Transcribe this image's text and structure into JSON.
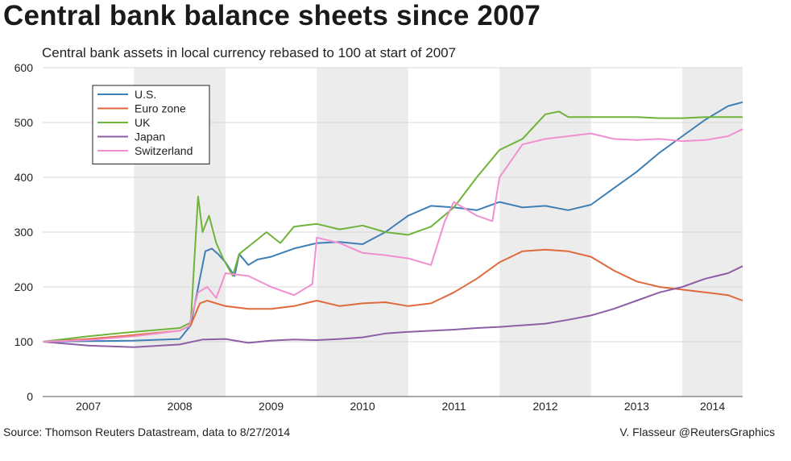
{
  "title": "Central bank balance sheets since 2007",
  "subtitle": "Central bank assets in local currency rebased to 100 at start of 2007",
  "source": "Source: Thomson Reuters Datastream, data to 8/27/2014",
  "credit": "V. Flasseur @ReutersGraphics",
  "chart_data": {
    "type": "line",
    "ylim": [
      0,
      600
    ],
    "xlim": [
      2007.0,
      2014.66
    ],
    "yticks": [
      "0",
      "100",
      "200",
      "300",
      "400",
      "500",
      "600"
    ],
    "xticks": [
      "2007",
      "2008",
      "2009",
      "2010",
      "2011",
      "2012",
      "2013",
      "2014"
    ],
    "shaded_years": [
      2008,
      2010,
      2012,
      2014
    ],
    "grid": true,
    "legend_position": "top-left",
    "series": [
      {
        "name": "U.S.",
        "color": "#3e7fb5",
        "x": [
          2007.0,
          2007.5,
          2008.0,
          2008.5,
          2008.62,
          2008.72,
          2008.78,
          2008.85,
          2008.92,
          2009.0,
          2009.1,
          2009.15,
          2009.25,
          2009.35,
          2009.5,
          2009.75,
          2010.0,
          2010.25,
          2010.5,
          2010.75,
          2011.0,
          2011.25,
          2011.5,
          2011.75,
          2012.0,
          2012.25,
          2012.5,
          2012.75,
          2013.0,
          2013.25,
          2013.5,
          2013.75,
          2014.0,
          2014.25,
          2014.5,
          2014.66
        ],
        "y": [
          100,
          101,
          102,
          105,
          130,
          215,
          265,
          270,
          260,
          245,
          220,
          260,
          240,
          250,
          255,
          270,
          280,
          282,
          278,
          300,
          330,
          348,
          345,
          340,
          355,
          345,
          348,
          340,
          350,
          380,
          410,
          445,
          475,
          505,
          530,
          537
        ]
      },
      {
        "name": "Euro zone",
        "color": "#e06a3c",
        "x": [
          2007.0,
          2007.5,
          2008.0,
          2008.5,
          2008.62,
          2008.72,
          2008.8,
          2009.0,
          2009.25,
          2009.5,
          2009.75,
          2010.0,
          2010.25,
          2010.5,
          2010.75,
          2011.0,
          2011.25,
          2011.5,
          2011.75,
          2012.0,
          2012.25,
          2012.5,
          2012.75,
          2013.0,
          2013.25,
          2013.5,
          2013.75,
          2014.0,
          2014.25,
          2014.5,
          2014.66
        ],
        "y": [
          100,
          105,
          112,
          120,
          130,
          170,
          175,
          165,
          160,
          160,
          165,
          175,
          165,
          170,
          172,
          165,
          170,
          190,
          215,
          245,
          265,
          268,
          265,
          255,
          230,
          210,
          200,
          195,
          190,
          185,
          175
        ]
      },
      {
        "name": "UK",
        "color": "#6fb33a",
        "x": [
          2007.0,
          2007.5,
          2008.0,
          2008.5,
          2008.62,
          2008.7,
          2008.75,
          2008.82,
          2008.9,
          2008.98,
          2009.08,
          2009.15,
          2009.3,
          2009.45,
          2009.6,
          2009.75,
          2010.0,
          2010.25,
          2010.5,
          2010.75,
          2011.0,
          2011.25,
          2011.5,
          2011.75,
          2012.0,
          2012.25,
          2012.5,
          2012.65,
          2012.75,
          2013.0,
          2013.25,
          2013.5,
          2013.75,
          2014.0,
          2014.25,
          2014.5,
          2014.66
        ],
        "y": [
          100,
          110,
          118,
          125,
          135,
          365,
          300,
          330,
          280,
          250,
          220,
          260,
          280,
          300,
          280,
          310,
          315,
          305,
          312,
          300,
          295,
          310,
          345,
          400,
          450,
          470,
          515,
          520,
          510,
          510,
          510,
          510,
          508,
          508,
          510,
          510,
          510
        ]
      },
      {
        "name": "Japan",
        "color": "#8e5ea7",
        "x": [
          2007.0,
          2007.5,
          2008.0,
          2008.5,
          2008.75,
          2009.0,
          2009.25,
          2009.5,
          2009.75,
          2010.0,
          2010.25,
          2010.5,
          2010.75,
          2011.0,
          2011.25,
          2011.5,
          2011.75,
          2012.0,
          2012.25,
          2012.5,
          2012.75,
          2013.0,
          2013.25,
          2013.5,
          2013.75,
          2014.0,
          2014.25,
          2014.5,
          2014.66
        ],
        "y": [
          100,
          93,
          90,
          95,
          104,
          105,
          98,
          102,
          104,
          103,
          105,
          108,
          115,
          118,
          120,
          122,
          125,
          127,
          130,
          133,
          140,
          148,
          160,
          175,
          190,
          200,
          215,
          225,
          238
        ]
      },
      {
        "name": "Switzerland",
        "color": "#f28fcf",
        "x": [
          2007.0,
          2007.5,
          2008.0,
          2008.5,
          2008.6,
          2008.7,
          2008.8,
          2008.9,
          2009.0,
          2009.25,
          2009.5,
          2009.75,
          2009.95,
          2010.0,
          2010.25,
          2010.5,
          2010.75,
          2011.0,
          2011.25,
          2011.4,
          2011.5,
          2011.75,
          2011.92,
          2012.0,
          2012.25,
          2012.5,
          2012.75,
          2013.0,
          2013.25,
          2013.5,
          2013.75,
          2014.0,
          2014.25,
          2014.5,
          2014.66
        ],
        "y": [
          100,
          103,
          110,
          120,
          128,
          190,
          200,
          180,
          225,
          220,
          200,
          185,
          205,
          290,
          280,
          262,
          258,
          252,
          240,
          320,
          355,
          330,
          320,
          400,
          460,
          470,
          475,
          480,
          470,
          468,
          470,
          466,
          468,
          475,
          488
        ]
      }
    ]
  }
}
